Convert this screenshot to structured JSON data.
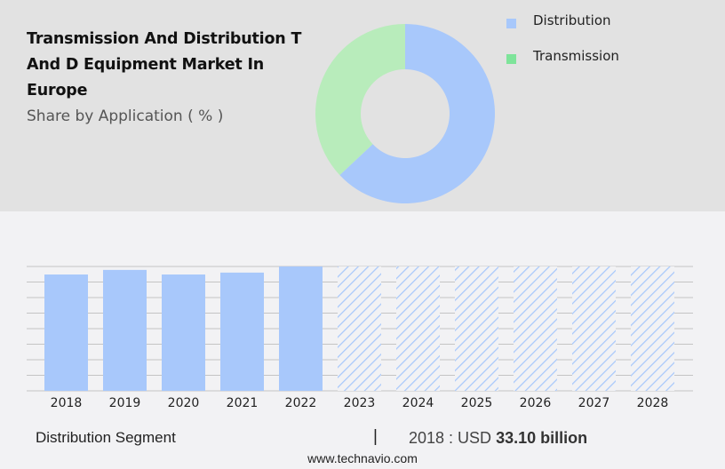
{
  "header": {
    "title": "Transmission And Distribution T And D Equipment Market In Europe",
    "subtitle": "Share by Application ( % )"
  },
  "legend": [
    {
      "label": "Distribution",
      "color": "#a8c8fb"
    },
    {
      "label": "Transmission",
      "color": "#7ee49a"
    }
  ],
  "footer": {
    "segment": "Distribution Segment",
    "separator": "|",
    "year_label": "2018 : USD",
    "value": "33.10 billion",
    "url": "www.technavio.com"
  },
  "chart_data": [
    {
      "type": "pie",
      "title": "Share by Application ( % )",
      "donut": true,
      "categories": [
        "Distribution",
        "Transmission"
      ],
      "values": [
        63,
        37
      ],
      "colors": [
        "#a8c8fb",
        "#b8ecbb"
      ]
    },
    {
      "type": "bar",
      "title": "Distribution Segment",
      "categories": [
        "2018",
        "2019",
        "2020",
        "2021",
        "2022",
        "2023",
        "2024",
        "2025",
        "2026",
        "2027",
        "2028"
      ],
      "values": [
        33.1,
        34.3,
        33.1,
        33.6,
        35.2,
        null,
        null,
        null,
        null,
        null,
        null
      ],
      "forecast": [
        false,
        false,
        false,
        false,
        false,
        true,
        true,
        true,
        true,
        true,
        true
      ],
      "bar_color": "#a8c8fb",
      "grid": true,
      "gridlines": 9,
      "xlabel": "",
      "ylabel": "",
      "annotation": "2018 : USD 33.10 billion"
    }
  ]
}
